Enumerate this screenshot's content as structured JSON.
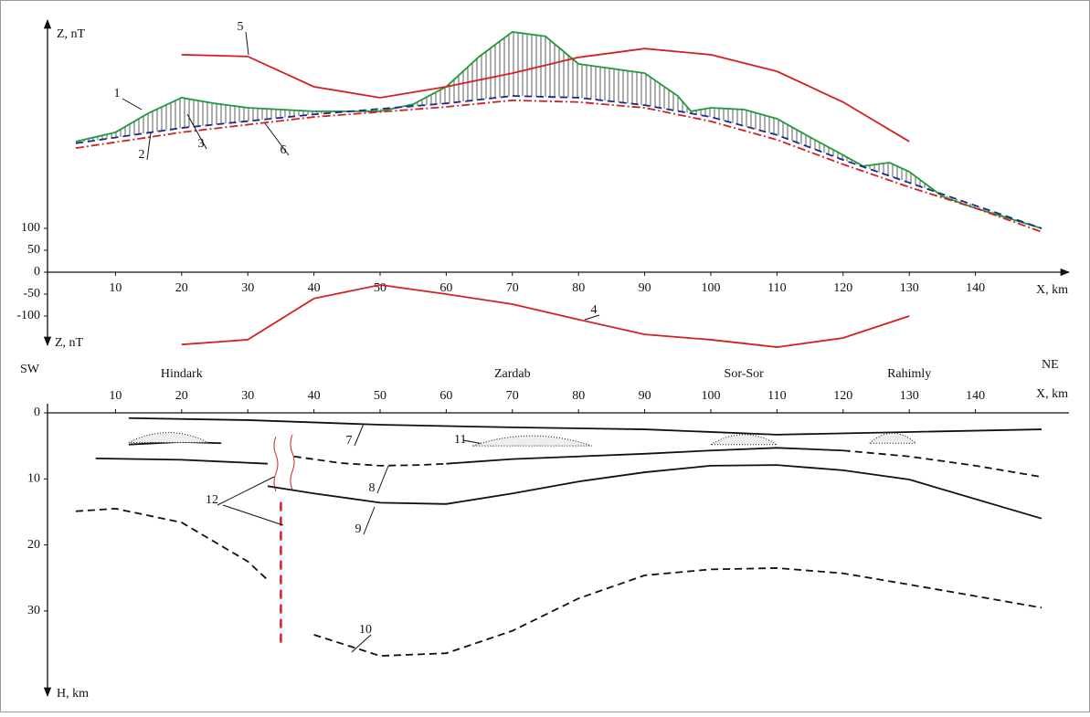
{
  "chart_data": [
    {
      "type": "line",
      "x_label": "X, km",
      "y_label": "Z, nT",
      "y_label_negative": "Z, nT",
      "xlim": [
        0,
        150
      ],
      "xticks": [
        10,
        20,
        30,
        40,
        50,
        60,
        70,
        80,
        90,
        100,
        110,
        120,
        130,
        140
      ],
      "ylim": [
        -170,
        580
      ],
      "yticks": [
        -100,
        -50,
        0,
        50,
        100
      ],
      "series": [
        {
          "name": "1",
          "color": "#1f9a3a",
          "style": "solid",
          "x": [
            4,
            10,
            15,
            20,
            25,
            30,
            40,
            50,
            55,
            60,
            65,
            70,
            75,
            80,
            90,
            95,
            97,
            100,
            105,
            110,
            115,
            120,
            123,
            127,
            130,
            135,
            140,
            150
          ],
          "values": [
            298,
            319,
            363,
            398,
            385,
            375,
            367,
            367,
            383,
            423,
            492,
            548,
            538,
            475,
            454,
            402,
            367,
            375,
            371,
            350,
            308,
            267,
            242,
            250,
            229,
            173,
            146,
            100
          ]
        },
        {
          "name": "2",
          "color": "#1a2a8a",
          "style": "dashed",
          "x": [
            4,
            20,
            40,
            60,
            70,
            80,
            90,
            100,
            110,
            120,
            130,
            140,
            150
          ],
          "values": [
            294,
            329,
            360,
            385,
            402,
            398,
            381,
            354,
            313,
            256,
            204,
            152,
            100
          ]
        },
        {
          "name": "3",
          "color": "#333333",
          "style": "hatch"
        },
        {
          "name": "4",
          "color": "#d42020",
          "style": "solid",
          "x": [
            20,
            30,
            40,
            50,
            60,
            70,
            80,
            90,
            100,
            110,
            120,
            130
          ],
          "values": [
            -165,
            -154,
            -60,
            -29,
            -50,
            -73,
            -108,
            -142,
            -154,
            -171,
            -150,
            -100
          ]
        },
        {
          "name": "5",
          "color": "#d42020",
          "style": "solid",
          "x": [
            20,
            30,
            40,
            50,
            60,
            70,
            80,
            90,
            100,
            110,
            120,
            130
          ],
          "values": [
            496,
            492,
            423,
            398,
            423,
            454,
            490,
            510,
            496,
            458,
            388,
            298
          ]
        },
        {
          "name": "6",
          "color": "#d42020",
          "style": "dashdot",
          "x": [
            4,
            20,
            40,
            60,
            70,
            80,
            90,
            100,
            110,
            120,
            130,
            140,
            150
          ],
          "values": [
            283,
            319,
            354,
            377,
            392,
            388,
            375,
            344,
            302,
            246,
            194,
            146,
            92
          ]
        }
      ]
    },
    {
      "type": "line",
      "x_label": "X, km",
      "y_label": "H, km",
      "left_label": "SW",
      "right_label": "NE",
      "xlim": [
        0,
        150
      ],
      "xticks": [
        10,
        20,
        30,
        40,
        50,
        60,
        70,
        80,
        90,
        100,
        110,
        120,
        130,
        140
      ],
      "ylim": [
        0,
        42
      ],
      "yticks": [
        0,
        10,
        20,
        30
      ],
      "inverted": true,
      "places": [
        {
          "name": "Hindark",
          "x": 20
        },
        {
          "name": "Zardab",
          "x": 70
        },
        {
          "name": "Sor-Sor",
          "x": 105
        },
        {
          "name": "Rahimly",
          "x": 130
        }
      ],
      "lens_label": "11",
      "series": [
        {
          "name": "7",
          "color": "#111111",
          "style": "solid",
          "x": [
            12,
            30,
            50,
            70,
            90,
            110,
            130,
            150
          ],
          "values": [
            0.8,
            1.1,
            1.8,
            2.2,
            2.5,
            3.3,
            2.9,
            2.5
          ]
        },
        {
          "name": "8",
          "color": "#111111",
          "style": "dashed",
          "x": [
            37,
            44,
            50,
            56,
            60,
            62,
            120,
            130,
            140,
            150
          ],
          "values": [
            6.6,
            7.6,
            8.0,
            7.9,
            7.7,
            null,
            5.7,
            6.6,
            8.0,
            9.7
          ]
        },
        {
          "color": "#111111",
          "style": "solid",
          "x": [
            7,
            20,
            33,
            47,
            60,
            70,
            80,
            90,
            100,
            110,
            120
          ],
          "values": [
            6.9,
            7.1,
            7.7,
            null,
            7.7,
            7.0,
            6.6,
            6.2,
            5.7,
            5.3,
            5.7
          ]
        },
        {
          "color": "#111111",
          "style": "solid",
          "x": [
            12,
            20,
            26
          ],
          "values": [
            4.8,
            4.4,
            4.6
          ]
        },
        {
          "name": "9",
          "color": "#111111",
          "style": "solid",
          "x": [
            33,
            40,
            50,
            60,
            70,
            80,
            90,
            100,
            110,
            120,
            130,
            150
          ],
          "values": [
            11.1,
            12.2,
            13.6,
            13.8,
            12.2,
            10.4,
            9.0,
            8.0,
            7.9,
            8.7,
            10.1,
            16.0
          ]
        },
        {
          "name": "10",
          "color": "#111111",
          "style": "dashed",
          "x": [
            4,
            10,
            20,
            30,
            33,
            35,
            40,
            50,
            60,
            70,
            80,
            90,
            100,
            110,
            120,
            130,
            150
          ],
          "values": [
            14.9,
            14.5,
            16.6,
            22.5,
            25.3,
            null,
            33.6,
            36.8,
            36.4,
            33.0,
            28.1,
            24.6,
            23.7,
            23.5,
            24.3,
            26.0,
            29.5
          ]
        },
        {
          "name": "12",
          "color": "#d42020",
          "style": "fault",
          "x": [
            35,
            35
          ],
          "values": [
            13.5,
            35.5
          ]
        }
      ]
    }
  ]
}
